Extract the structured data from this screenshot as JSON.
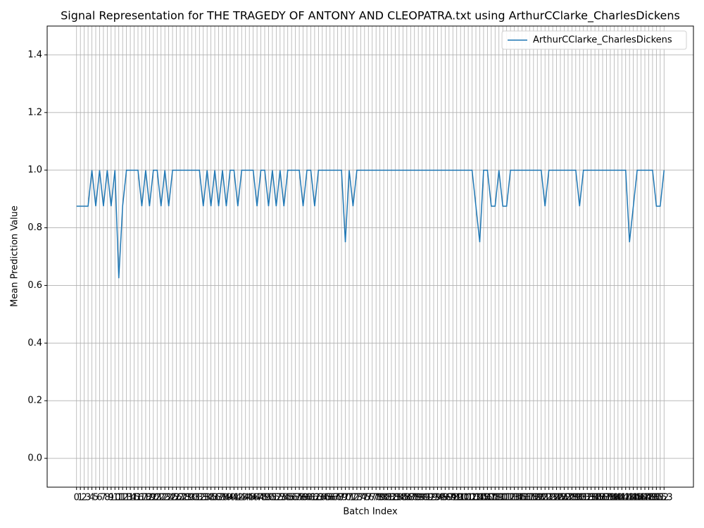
{
  "chart_data": {
    "type": "line",
    "title": "Signal Representation for THE TRAGEDY OF ANTONY AND CLEOPATRA.txt using ArthurCClarke_CharlesDickens",
    "xlabel": "Batch Index",
    "ylabel": "Mean Prediction Value",
    "x": [
      0,
      1,
      2,
      3,
      4,
      5,
      6,
      7,
      8,
      9,
      10,
      11,
      12,
      13,
      14,
      15,
      16,
      17,
      18,
      19,
      20,
      21,
      22,
      23,
      24,
      25,
      26,
      27,
      28,
      29,
      30,
      31,
      32,
      33,
      34,
      35,
      36,
      37,
      38,
      39,
      40,
      41,
      42,
      43,
      44,
      45,
      46,
      47,
      48,
      49,
      50,
      51,
      52,
      53,
      54,
      55,
      56,
      57,
      58,
      59,
      60,
      61,
      62,
      63,
      64,
      65,
      66,
      67,
      68,
      69,
      70,
      71,
      72,
      73,
      74,
      75,
      76,
      77,
      78,
      79,
      80,
      81,
      82,
      83,
      84,
      85,
      86,
      87,
      88,
      89,
      90,
      91,
      92,
      93,
      94,
      95,
      96,
      97,
      98,
      99,
      100,
      101,
      102,
      103,
      104,
      105,
      106,
      107,
      108,
      109,
      110,
      111,
      112,
      113,
      114,
      115,
      116,
      117,
      118,
      119,
      120,
      121,
      122,
      123,
      124,
      125,
      126,
      127,
      128,
      129,
      130,
      131,
      132,
      133,
      134,
      135,
      136,
      137,
      138,
      139,
      140,
      141,
      142,
      143,
      144,
      145,
      146,
      147,
      148,
      149,
      150,
      151,
      152,
      153
    ],
    "series": [
      {
        "name": "ArthurCClarke_CharlesDickens",
        "color": "#1f77b4",
        "values": [
          0.875,
          0.875,
          0.875,
          0.875,
          1,
          0.875,
          1,
          0.875,
          1,
          0.875,
          1,
          0.625,
          0.875,
          1,
          1,
          1,
          1,
          0.875,
          1,
          0.875,
          1,
          1,
          0.875,
          1,
          0.875,
          1,
          1,
          1,
          1,
          1,
          1,
          1,
          1,
          0.875,
          1,
          0.875,
          1,
          0.875,
          1,
          0.875,
          1,
          1,
          0.875,
          1,
          1,
          1,
          1,
          0.875,
          1,
          1,
          0.875,
          1,
          0.875,
          1,
          0.875,
          1,
          1,
          1,
          1,
          0.875,
          1,
          1,
          0.875,
          1,
          1,
          1,
          1,
          1,
          1,
          1,
          0.75,
          1,
          0.875,
          1,
          1,
          1,
          1,
          1,
          1,
          1,
          1,
          1,
          1,
          1,
          1,
          1,
          1,
          1,
          1,
          1,
          1,
          1,
          1,
          1,
          1,
          1,
          1,
          1,
          1,
          1,
          1,
          1,
          1,
          1,
          0.875,
          0.75,
          1,
          1,
          0.875,
          0.875,
          1,
          0.875,
          0.875,
          1,
          1,
          1,
          1,
          1,
          1,
          1,
          1,
          1,
          0.875,
          1,
          1,
          1,
          1,
          1,
          1,
          1,
          1,
          0.875,
          1,
          1,
          1,
          1,
          1,
          1,
          1,
          1,
          1,
          1,
          1,
          1,
          0.75,
          0.875,
          1,
          1,
          1,
          1,
          1,
          0.875,
          0.875,
          1
        ]
      }
    ],
    "xlim": [
      -7.65,
      160.65
    ],
    "xticks": [
      0,
      1,
      2,
      3,
      4,
      5,
      6,
      7,
      8,
      9,
      10,
      11,
      12,
      13,
      14,
      15,
      16,
      17,
      18,
      19,
      20,
      21,
      22,
      23,
      24,
      25,
      26,
      27,
      28,
      29,
      30,
      31,
      32,
      33,
      34,
      35,
      36,
      37,
      38,
      39,
      40,
      41,
      42,
      43,
      44,
      45,
      46,
      47,
      48,
      49,
      50,
      51,
      52,
      53,
      54,
      55,
      56,
      57,
      58,
      59,
      60,
      61,
      62,
      63,
      64,
      65,
      66,
      67,
      68,
      69,
      70,
      71,
      72,
      73,
      74,
      75,
      76,
      77,
      78,
      79,
      80,
      81,
      82,
      83,
      84,
      85,
      86,
      87,
      88,
      89,
      90,
      91,
      92,
      93,
      94,
      95,
      96,
      97,
      98,
      99,
      100,
      101,
      102,
      103,
      104,
      105,
      106,
      107,
      108,
      109,
      110,
      111,
      112,
      113,
      114,
      115,
      116,
      117,
      118,
      119,
      120,
      121,
      122,
      123,
      124,
      125,
      126,
      127,
      128,
      129,
      130,
      131,
      132,
      133,
      134,
      135,
      136,
      137,
      138,
      139,
      140,
      141,
      142,
      143,
      144,
      145,
      146,
      147,
      148,
      149,
      150,
      151,
      152,
      153
    ],
    "ylim": [
      -0.1,
      1.5
    ],
    "yticks": [
      {
        "value": 0,
        "label": "0.0"
      },
      0.2,
      0.4,
      0.6,
      0.8,
      {
        "value": 1,
        "label": "1.0"
      },
      1.2,
      1.4
    ],
    "grid": true,
    "legend": "upper right"
  }
}
